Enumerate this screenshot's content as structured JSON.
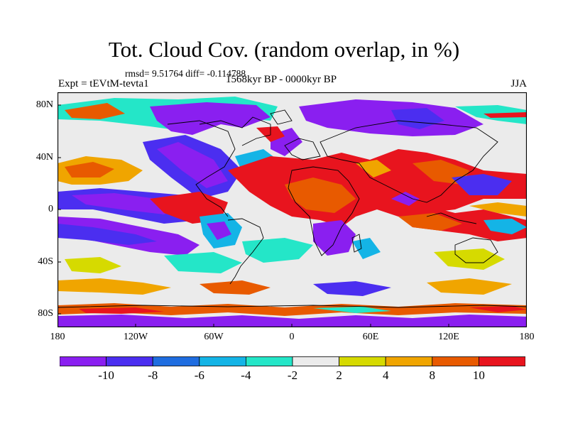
{
  "title": "Tot. Cloud Cov. (random overlap, in %)",
  "stats": "rmsd= 9.51764 diff= -0.114788",
  "period": "1568kyr BP - 0000kyr BP",
  "experiment": "Expt = tEVtM-tevta1",
  "season": "JJA",
  "chart_data": {
    "type": "heatmap",
    "title": "Tot. Cloud Cov. (random overlap, in %)",
    "x_ticks": [
      "180",
      "120W",
      "60W",
      "0",
      "60E",
      "120E",
      "180"
    ],
    "y_ticks": [
      "80N",
      "40N",
      "0",
      "40S",
      "80S"
    ],
    "xlim": [
      -180,
      180
    ],
    "ylim": [
      -90,
      90
    ],
    "colorbar": {
      "labels": [
        "-10",
        "-8",
        "-6",
        "-4",
        "-2",
        "2",
        "4",
        "8",
        "10"
      ],
      "colors": [
        "#8a1ff0",
        "#4b2ef0",
        "#1f6de0",
        "#14b4e6",
        "#24e6c8",
        "#ebebeb",
        "#d6da00",
        "#f0a500",
        "#e85a00",
        "#e8141e"
      ]
    }
  }
}
